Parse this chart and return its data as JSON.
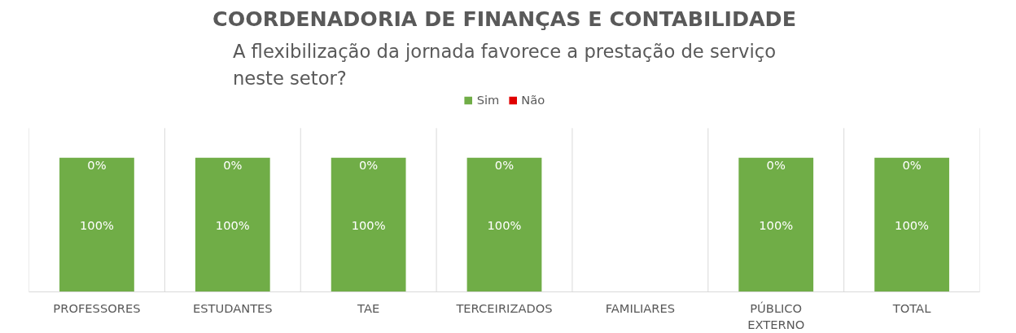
{
  "chart_data": {
    "type": "bar",
    "stacked": true,
    "title": "COORDENADORIA DE FINANÇAS E CONTABILIDADE",
    "subtitle": "A flexibilização da jornada favorece a prestação de serviço neste setor?",
    "categories": [
      "PROFESSORES",
      "ESTUDANTES",
      "TAE",
      "TERCEIRIZADOS",
      "FAMILIARES",
      "PÚBLICO EXTERNO",
      "TOTAL"
    ],
    "series": [
      {
        "name": "Sim",
        "color": "#70ad47",
        "values": [
          100,
          100,
          100,
          100,
          null,
          100,
          100
        ],
        "value_labels": [
          "100%",
          "100%",
          "100%",
          "100%",
          null,
          "100%",
          "100%"
        ]
      },
      {
        "name": "Não",
        "color": "#e00000",
        "values": [
          0,
          0,
          0,
          0,
          null,
          0,
          0
        ],
        "value_labels": [
          "0%",
          "0%",
          "0%",
          "0%",
          null,
          "0%",
          "0%"
        ]
      }
    ],
    "legend": "top",
    "grid": "x"
  }
}
